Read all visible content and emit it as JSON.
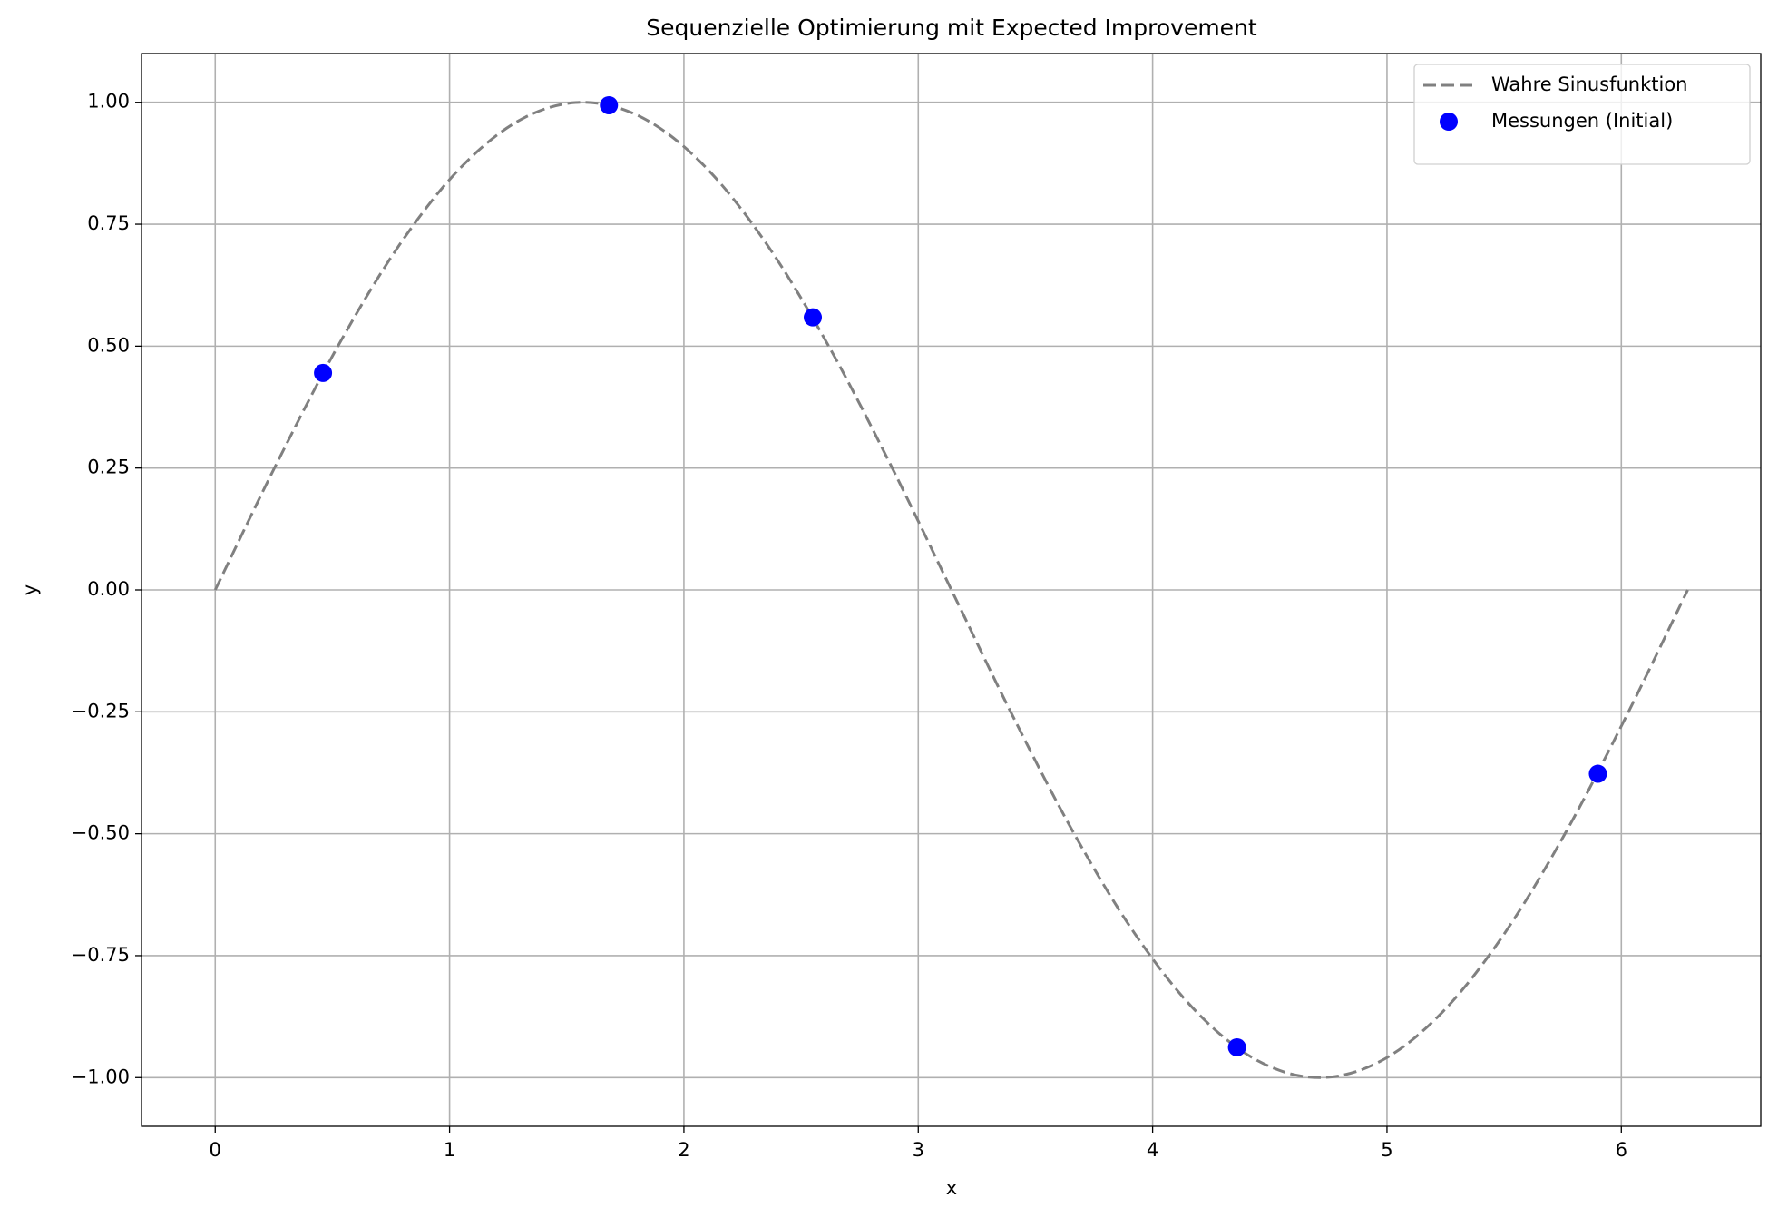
{
  "chart_data": {
    "type": "line_scatter",
    "title": "Sequenzielle Optimierung mit Expected Improvement",
    "xlabel": "x",
    "ylabel": "y",
    "xlim": [
      -0.3145,
      6.595
    ],
    "ylim": [
      -1.1,
      1.1
    ],
    "xticks": [
      0,
      1,
      2,
      3,
      4,
      5,
      6
    ],
    "yticks": [
      {
        "value": -1,
        "label": "−1.00"
      },
      {
        "value": -0.75,
        "label": "−0.75"
      },
      {
        "value": -0.5,
        "label": "−0.50"
      },
      {
        "value": -0.25,
        "label": "−0.25"
      },
      {
        "value": 0,
        "label": "0.00"
      },
      {
        "value": 0.25,
        "label": "0.25"
      },
      {
        "value": 0.5,
        "label": "0.50"
      },
      {
        "value": 0.75,
        "label": "0.75"
      },
      {
        "value": 1,
        "label": "1.00"
      }
    ],
    "grid": true,
    "legend": "upper right",
    "series": [
      {
        "name": "Wahre Sinusfunktion",
        "kind": "line",
        "color": "#808080",
        "x": [
          0,
          0.2618,
          0.5236,
          0.7854,
          1.0472,
          1.309,
          1.5708,
          1.8326,
          2.0944,
          2.3562,
          2.618,
          2.8798,
          3.1416,
          3.4034,
          3.6652,
          3.927,
          4.1888,
          4.4506,
          4.7124,
          4.9742,
          5.236,
          5.4978,
          5.7596,
          6.0214,
          6.2832
        ],
        "values": [
          0,
          0.2588,
          0.5,
          0.7071,
          0.866,
          0.9659,
          1,
          0.9659,
          0.866,
          0.7071,
          0.5,
          0.2588,
          0,
          -0.2588,
          -0.5,
          -0.7071,
          -0.866,
          -0.9659,
          -1,
          -0.9659,
          -0.866,
          -0.7071,
          -0.5,
          -0.2588,
          0
        ]
      },
      {
        "name": "Messungen (Initial)",
        "kind": "scatter",
        "color": "#0000ff",
        "x": [
          0.46,
          1.68,
          2.55,
          4.36,
          5.9
        ],
        "values": [
          0.445,
          0.994,
          0.559,
          -0.938,
          -0.377
        ]
      }
    ]
  }
}
